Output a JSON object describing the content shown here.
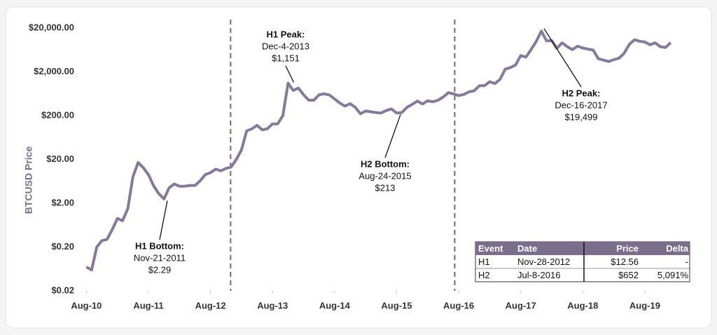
{
  "chart_data": {
    "type": "line",
    "y_label": "BTCUSD Price",
    "log_scale": true,
    "xlim": [
      "2010-07",
      "2020-04"
    ],
    "xticks": [
      {
        "value": "2010-08",
        "label": "Aug-10"
      },
      {
        "value": "2011-08",
        "label": "Aug-11"
      },
      {
        "value": "2012-08",
        "label": "Aug-12"
      },
      {
        "value": "2013-08",
        "label": "Aug-13"
      },
      {
        "value": "2014-08",
        "label": "Aug-14"
      },
      {
        "value": "2015-08",
        "label": "Aug-15"
      },
      {
        "value": "2016-08",
        "label": "Aug-16"
      },
      {
        "value": "2017-08",
        "label": "Aug-17"
      },
      {
        "value": "2018-08",
        "label": "Aug-18"
      },
      {
        "value": "2019-08",
        "label": "Aug-19"
      }
    ],
    "ylim": [
      0.02,
      20000
    ],
    "yticks": [
      {
        "value": 0.02,
        "label": "$0.02"
      },
      {
        "value": 0.2,
        "label": "$0.20"
      },
      {
        "value": 2,
        "label": "$2.00"
      },
      {
        "value": 20,
        "label": "$20.00"
      },
      {
        "value": 200,
        "label": "$200.00"
      },
      {
        "value": 2000,
        "label": "$2,000.00"
      },
      {
        "value": 20000,
        "label": "$20,000.00"
      }
    ],
    "x": [
      "2010-08",
      "2010-09",
      "2010-10",
      "2010-11",
      "2010-12",
      "2011-01",
      "2011-02",
      "2011-03",
      "2011-04",
      "2011-05",
      "2011-06",
      "2011-07",
      "2011-08",
      "2011-09",
      "2011-10",
      "2011-11",
      "2011-12",
      "2012-01",
      "2012-02",
      "2012-03",
      "2012-04",
      "2012-05",
      "2012-06",
      "2012-07",
      "2012-08",
      "2012-09",
      "2012-10",
      "2012-11",
      "2012-12",
      "2013-01",
      "2013-02",
      "2013-03",
      "2013-04",
      "2013-05",
      "2013-06",
      "2013-07",
      "2013-08",
      "2013-09",
      "2013-10",
      "2013-11",
      "2013-12",
      "2014-01",
      "2014-02",
      "2014-03",
      "2014-04",
      "2014-05",
      "2014-06",
      "2014-07",
      "2014-08",
      "2014-09",
      "2014-10",
      "2014-11",
      "2014-12",
      "2015-01",
      "2015-02",
      "2015-03",
      "2015-04",
      "2015-05",
      "2015-06",
      "2015-07",
      "2015-08",
      "2015-09",
      "2015-10",
      "2015-11",
      "2015-12",
      "2016-01",
      "2016-02",
      "2016-03",
      "2016-04",
      "2016-05",
      "2016-06",
      "2016-07",
      "2016-08",
      "2016-09",
      "2016-10",
      "2016-11",
      "2016-12",
      "2017-01",
      "2017-02",
      "2017-03",
      "2017-04",
      "2017-05",
      "2017-06",
      "2017-07",
      "2017-08",
      "2017-09",
      "2017-10",
      "2017-11",
      "2017-12",
      "2018-01",
      "2018-02",
      "2018-03",
      "2018-04",
      "2018-05",
      "2018-06",
      "2018-07",
      "2018-08",
      "2018-09",
      "2018-10",
      "2018-11",
      "2018-12",
      "2019-01",
      "2019-02",
      "2019-03",
      "2019-04",
      "2019-05",
      "2019-06",
      "2019-07",
      "2019-08",
      "2019-09",
      "2019-10",
      "2019-11",
      "2019-12",
      "2020-01"
    ],
    "series": [
      {
        "name": "BTCUSD",
        "color": "#857a99",
        "values": [
          0.07,
          0.06,
          0.2,
          0.28,
          0.3,
          0.5,
          0.9,
          0.8,
          1.5,
          8,
          17,
          13,
          9,
          5,
          3.3,
          2.5,
          4.5,
          5.5,
          4.9,
          4.9,
          5.1,
          5.1,
          6.5,
          9,
          10,
          12,
          11,
          12.5,
          13.5,
          20,
          33,
          90,
          100,
          120,
          95,
          100,
          130,
          130,
          200,
          1100,
          750,
          850,
          600,
          450,
          450,
          600,
          630,
          590,
          480,
          390,
          330,
          375,
          310,
          220,
          255,
          245,
          235,
          230,
          262,
          285,
          230,
          235,
          310,
          360,
          430,
          370,
          435,
          415,
          450,
          530,
          670,
          625,
          575,
          610,
          700,
          740,
          960,
          970,
          1190,
          1080,
          1350,
          2300,
          2500,
          2870,
          4700,
          4340,
          6450,
          9900,
          17000,
          10200,
          10300,
          6900,
          9200,
          7500,
          6400,
          7700,
          7000,
          6600,
          6300,
          4000,
          3700,
          3450,
          3800,
          4100,
          5300,
          8500,
          10800,
          10000,
          9600,
          8300,
          9200,
          7500,
          7200,
          9300
        ]
      }
    ],
    "annotations": [
      {
        "title": "H1 Bottom:",
        "date": "Nov-21-2011",
        "price": {
          "value": 2.29,
          "label": "$2.29"
        }
      },
      {
        "title": "H1 Peak:",
        "date": "Dec-4-2013",
        "price": {
          "value": 1151,
          "label": "$1,151"
        }
      },
      {
        "title": "H2 Bottom:",
        "date": "Aug-24-2015",
        "price": {
          "value": 213,
          "label": "$213"
        }
      },
      {
        "title": "H2 Peak:",
        "date": "Dec-16-2017",
        "price": {
          "value": 19499,
          "label": "$19,499"
        }
      }
    ],
    "table": {
      "columns": [
        "Event",
        "Date",
        "Price",
        "Delta"
      ],
      "rows": [
        [
          "H1",
          "Nov-28-2012",
          "$12.56",
          "-"
        ],
        [
          "H2",
          "Jul-8-2016",
          "$652",
          "5,091%"
        ]
      ]
    }
  }
}
